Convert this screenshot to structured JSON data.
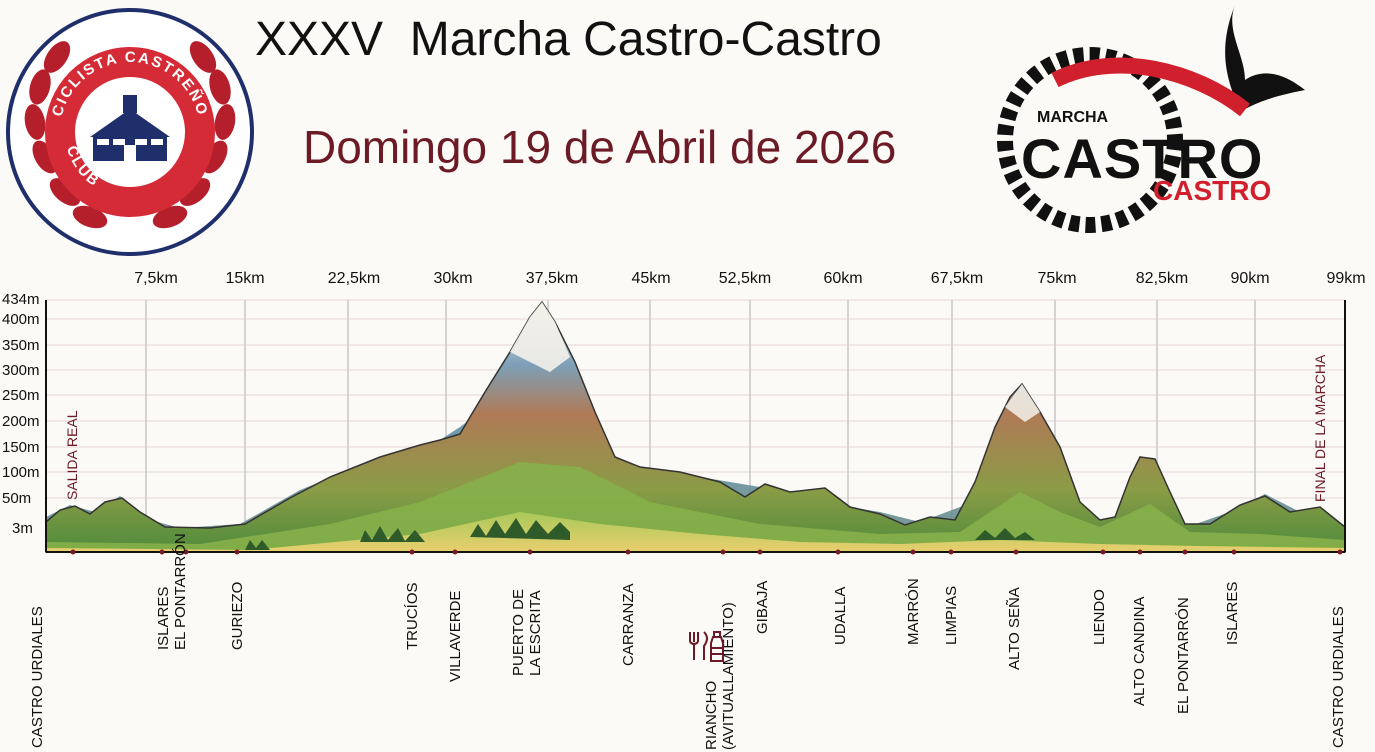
{
  "title": "XXXV  Marcha Castro-Castro",
  "date": "Domingo 19 de Abril de 2026",
  "club_logo": {
    "text": "CLUB CICLISTA CASTREÑO"
  },
  "event_logo": {
    "line1": "MARCHA",
    "line2": "CASTRO",
    "line3": "CASTRO"
  },
  "km_marks": [
    "7,5km",
    "15km",
    "22,5km",
    "30km",
    "37,5km",
    "45km",
    "52,5km",
    "60km",
    "67,5km",
    "75km",
    "82,5km",
    "90km",
    "99km"
  ],
  "altitudes": [
    "434m",
    "400m",
    "350m",
    "300m",
    "250m",
    "200m",
    "150m",
    "100m",
    "50m",
    "3m"
  ],
  "start_label": "SALIDA REAL",
  "finish_label": "FINAL DE LA MARCHA",
  "places": [
    "CASTRO URDIALES",
    "ISLARES\nEL PONTARRÓN",
    "GURIEZO",
    "TRUCÍOS",
    "VILLAVERDE",
    "PUERTO DE\nLA ESCRITA",
    "CARRANZA",
    "RIANCHO\n(AVITUALLAMIENTO)",
    "GIBAJA",
    "UDALLA",
    "MARRÓN",
    "LIMPIAS",
    "ALTO SEÑA",
    "LIENDO",
    "ALTO CANDINA",
    "EL PONTARRÓN",
    "ISLARES",
    "CASTRO URDIALES"
  ],
  "colors": {
    "accent": "#6b1a26",
    "red": "#d0202e",
    "navy": "#1f2f6b"
  },
  "icons": {
    "food": "fork-knife-icon",
    "drink": "bottle-icon"
  }
}
